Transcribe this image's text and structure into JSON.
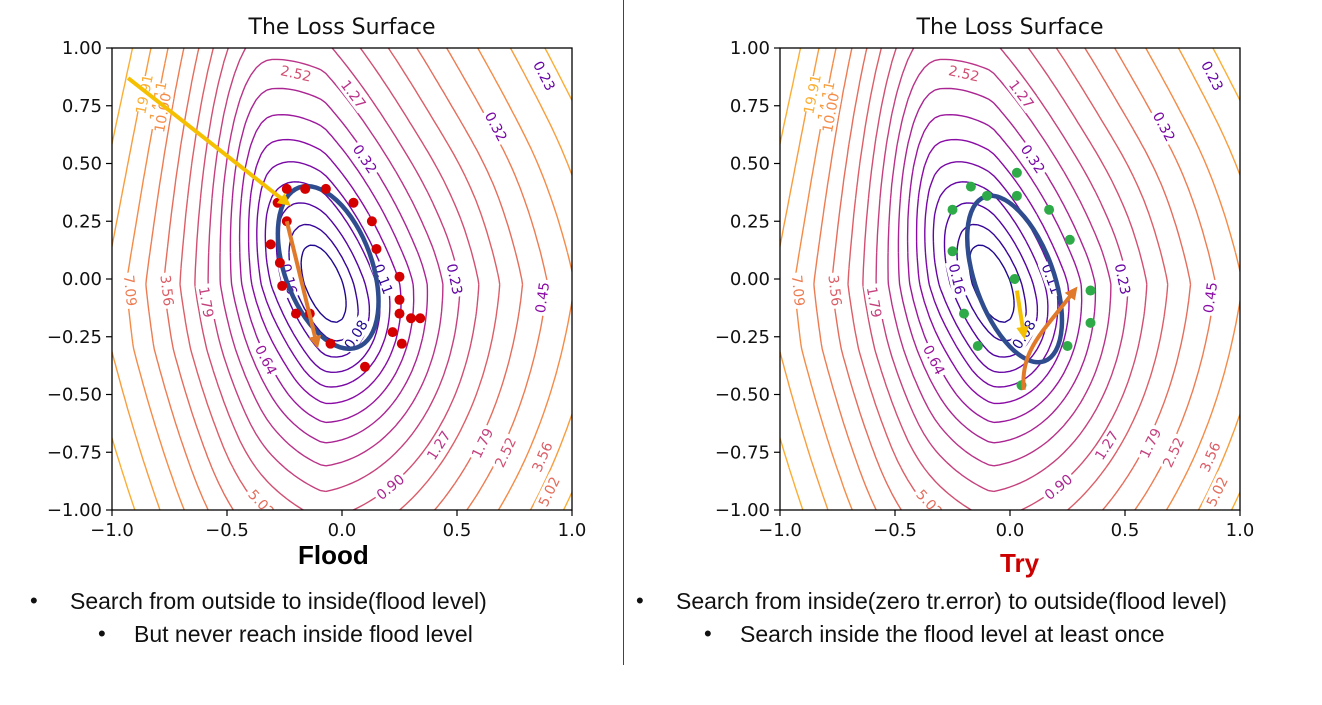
{
  "panels": [
    {
      "id": "left",
      "title": "The Loss Surface",
      "caption": "Flood",
      "caption_color": "#000000",
      "bullet": "Search from outside to inside(flood level)",
      "sub_bullet": "But never reach inside flood level",
      "points": [
        [
          -0.24,
          0.39
        ],
        [
          -0.16,
          0.39
        ],
        [
          -0.07,
          0.39
        ],
        [
          0.05,
          0.33
        ],
        [
          -0.28,
          0.33
        ],
        [
          0.13,
          0.25
        ],
        [
          -0.24,
          0.25
        ],
        [
          -0.31,
          0.15
        ],
        [
          0.15,
          0.13
        ],
        [
          -0.27,
          0.07
        ],
        [
          0.25,
          0.01
        ],
        [
          -0.26,
          -0.03
        ],
        [
          0.25,
          -0.09
        ],
        [
          -0.2,
          -0.15
        ],
        [
          0.25,
          -0.15
        ],
        [
          -0.14,
          -0.15
        ],
        [
          0.34,
          -0.17
        ],
        [
          0.3,
          -0.17
        ],
        [
          0.22,
          -0.23
        ],
        [
          -0.05,
          -0.28
        ],
        [
          0.26,
          -0.28
        ],
        [
          0.1,
          -0.38
        ]
      ],
      "point_color": "#d40000",
      "arrows": [
        {
          "from": [
            -0.93,
            0.87
          ],
          "to": [
            -0.24,
            0.33
          ],
          "color": "#f5c000"
        },
        {
          "from": [
            -0.24,
            0.25
          ],
          "to": [
            -0.11,
            -0.28
          ],
          "color": "#e07a2a"
        }
      ],
      "flood_ellipse": {
        "cx": -0.06,
        "cy": 0.05,
        "rx": 0.19,
        "ry": 0.37,
        "angle": -20,
        "color": "#2e4c8e"
      }
    },
    {
      "id": "right",
      "title": "The Loss Surface",
      "caption": "Try",
      "caption_color": "#cc0000",
      "bullet": "Search from inside(zero tr.error) to outside(flood level)",
      "sub_bullet": "Search inside the flood level at least once",
      "points": [
        [
          0.03,
          0.46
        ],
        [
          -0.17,
          0.4
        ],
        [
          -0.1,
          0.36
        ],
        [
          0.03,
          0.36
        ],
        [
          -0.25,
          0.3
        ],
        [
          0.17,
          0.3
        ],
        [
          0.26,
          0.17
        ],
        [
          -0.25,
          0.12
        ],
        [
          0.02,
          0.0
        ],
        [
          0.35,
          -0.05
        ],
        [
          -0.2,
          -0.15
        ],
        [
          0.35,
          -0.19
        ],
        [
          -0.14,
          -0.29
        ],
        [
          0.25,
          -0.29
        ],
        [
          0.05,
          -0.46
        ]
      ],
      "point_color": "#2eab48",
      "arrows": [
        {
          "from": [
            0.03,
            -0.05
          ],
          "to": [
            0.06,
            -0.24
          ],
          "color": "#f5c000"
        },
        {
          "from": [
            0.06,
            -0.48
          ],
          "curve": true,
          "to": [
            0.28,
            -0.05
          ],
          "color": "#e07a2a"
        }
      ],
      "flood_ellipse": {
        "cx": 0.02,
        "cy": 0.0,
        "rx": 0.17,
        "ry": 0.38,
        "angle": -20,
        "color": "#2e4c8e"
      }
    }
  ],
  "chart_data": {
    "type": "contour",
    "xlim": [
      -1.0,
      1.0
    ],
    "ylim": [
      -1.0,
      1.0
    ],
    "xticks": [
      "−1.0",
      "−0.5",
      "0.0",
      "0.5",
      "1.0"
    ],
    "yticks": [
      "1.00",
      "0.75",
      "0.50",
      "0.25",
      "0.00",
      "−0.25",
      "−0.50",
      "−0.75",
      "−1.00"
    ],
    "contour_levels": [
      0.08,
      0.11,
      0.16,
      0.23,
      0.32,
      0.45,
      0.64,
      0.9,
      1.27,
      1.79,
      2.52,
      3.56,
      5.02,
      7.09,
      10.0,
      14.11,
      19.91
    ],
    "colormap": "plasma",
    "contour_labels": [
      {
        "t": "0.08",
        "x": 0.06,
        "y": -0.24
      },
      {
        "t": "0.11",
        "x": 0.18,
        "y": 0.0
      },
      {
        "t": "0.16",
        "x": -0.23,
        "y": 0.0
      },
      {
        "t": "0.23",
        "x": 0.49,
        "y": 0.0
      },
      {
        "t": "0.32",
        "x": 0.1,
        "y": 0.52
      },
      {
        "t": "0.45",
        "x": 0.87,
        "y": -0.08
      },
      {
        "t": "0.64",
        "x": -0.33,
        "y": -0.35
      },
      {
        "t": "0.90",
        "x": 0.21,
        "y": -0.9
      },
      {
        "t": "1.27",
        "x": 0.42,
        "y": -0.72
      },
      {
        "t": "1.79",
        "x": 0.61,
        "y": -0.71
      },
      {
        "t": "2.52",
        "x": 0.71,
        "y": -0.75
      },
      {
        "t": "3.56",
        "x": 0.87,
        "y": -0.77
      },
      {
        "t": "5.02",
        "x": 0.9,
        "y": -0.92
      },
      {
        "t": "7.09",
        "x": -0.92,
        "y": -0.05
      },
      {
        "t": "3.56",
        "x": -0.76,
        "y": -0.05
      },
      {
        "t": "1.79",
        "x": -0.59,
        "y": -0.1
      },
      {
        "t": "5.02",
        "x": -0.35,
        "y": -0.97
      },
      {
        "t": "19.91",
        "x": -0.86,
        "y": 0.8
      },
      {
        "t": "14.11",
        "x": -0.8,
        "y": 0.77
      },
      {
        "t": "10.00",
        "x": -0.78,
        "y": 0.72
      },
      {
        "t": "2.52",
        "x": -0.2,
        "y": 0.89
      },
      {
        "t": "1.27",
        "x": 0.05,
        "y": 0.8
      },
      {
        "t": "0.23",
        "x": 0.88,
        "y": 0.88
      },
      {
        "t": "0.32",
        "x": 0.67,
        "y": 0.66
      }
    ]
  }
}
